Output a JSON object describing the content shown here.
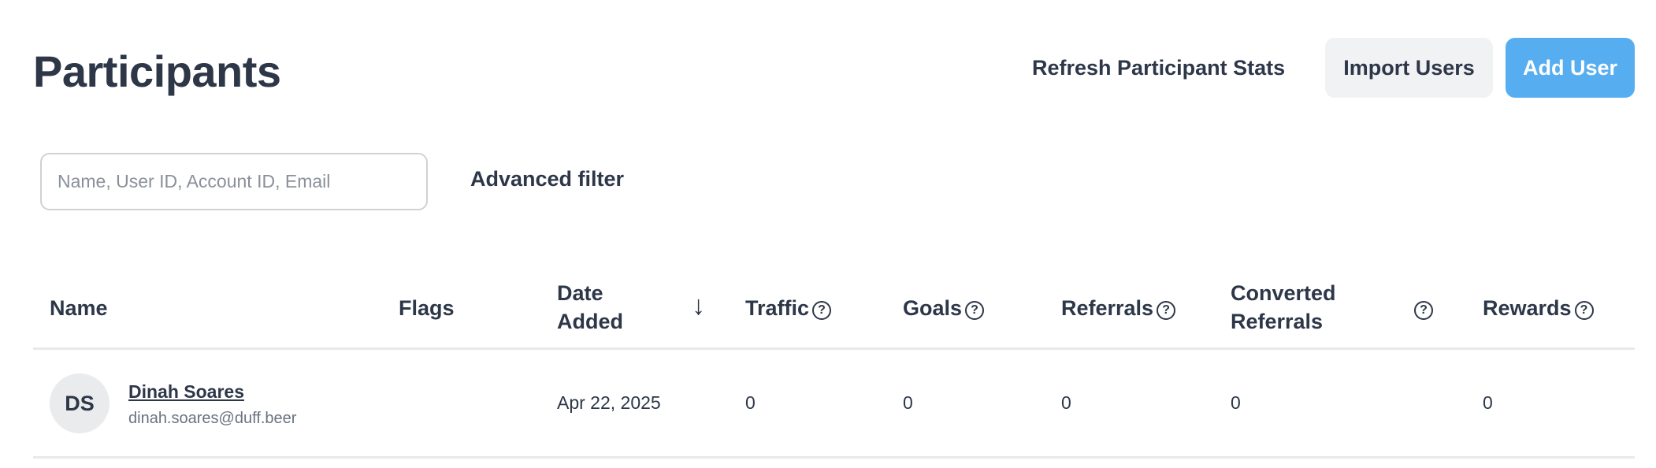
{
  "header": {
    "title": "Participants",
    "refresh_label": "Refresh Participant Stats",
    "import_label": "Import Users",
    "add_label": "Add User"
  },
  "filters": {
    "search_placeholder": "Name, User ID, Account ID, Email",
    "search_value": "",
    "advanced_label": "Advanced filter"
  },
  "table": {
    "columns": [
      "Name",
      "Flags",
      "Date Added",
      "Traffic",
      "Goals",
      "Referrals",
      "Converted Referrals",
      "Rewards"
    ],
    "date_line1": "Date",
    "date_line2": "Added",
    "converted_line1": "Converted",
    "converted_line2": "Referrals",
    "sort": "descending",
    "help_glyph": "?",
    "sort_glyph": "↓",
    "rows": [
      {
        "initials": "DS",
        "name": "Dinah Soares",
        "email": "dinah.soares@duff.beer",
        "flags": "",
        "date_added": "Apr 22, 2025",
        "traffic": "0",
        "goals": "0",
        "referrals": "0",
        "converted_referrals": "0",
        "rewards": "0"
      }
    ]
  },
  "colors": {
    "accent": "#56aef0",
    "text": "#2d3748"
  }
}
